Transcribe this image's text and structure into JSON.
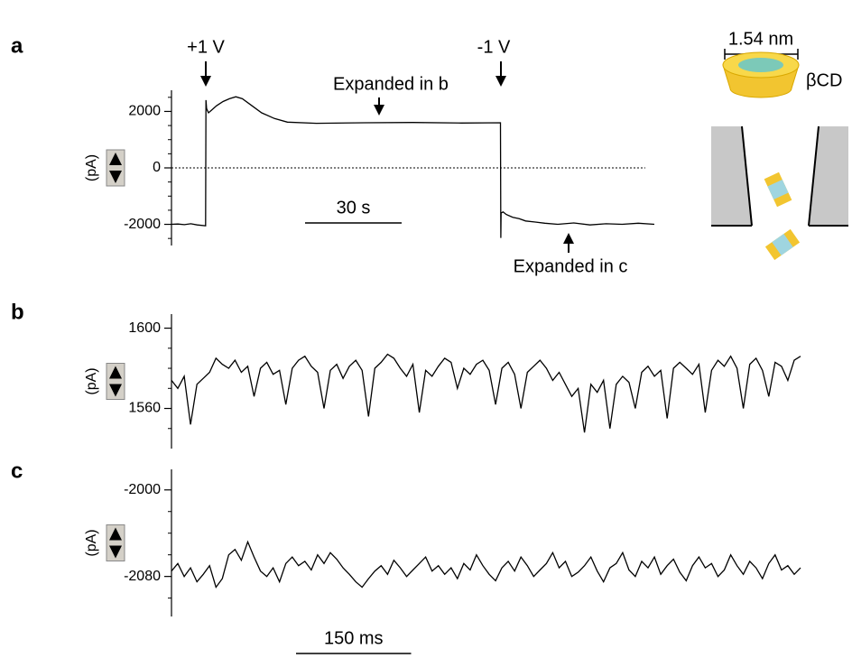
{
  "chart_data": [
    {
      "type": "line",
      "panel": "a",
      "y_label": "(pA)",
      "x": [
        0,
        2,
        4,
        6,
        8,
        10.6,
        10.7,
        10.9,
        11.5,
        12.5,
        14,
        16,
        18,
        20,
        22,
        25,
        28,
        32,
        36,
        45,
        60,
        75,
        90,
        102.2,
        102.3,
        102.4,
        103,
        104,
        106,
        108,
        110,
        113,
        116,
        120,
        125,
        130,
        135,
        140,
        145,
        150
      ],
      "values": [
        -2000,
        -1990,
        -2010,
        -1980,
        -2020,
        -2050,
        2400,
        2100,
        1950,
        2050,
        2200,
        2350,
        2450,
        2520,
        2450,
        2200,
        1950,
        1750,
        1620,
        1580,
        1600,
        1610,
        1590,
        1600,
        -2480,
        -1600,
        -1560,
        -1650,
        -1750,
        -1800,
        -1880,
        -1920,
        -1960,
        -2000,
        -1950,
        -2020,
        -1980,
        -2000,
        -1960,
        -2000
      ],
      "color": "#000000",
      "xlim": [
        0,
        150
      ],
      "ylim": [
        -2750,
        2750
      ],
      "yticks": [
        -2000,
        0,
        2000
      ],
      "yminorticks": [
        -2500,
        -1500,
        -1000,
        -500,
        500,
        1000,
        1500,
        2500
      ],
      "reference_line": 0,
      "scale_bar": {
        "label": "30 s",
        "value": 30
      },
      "annotations": [
        "+1 V",
        "-1 V",
        "Expanded in b",
        "Expanded in c"
      ]
    },
    {
      "type": "line",
      "panel": "b",
      "y_label": "(pA)",
      "values": [
        1574,
        1570,
        1576,
        1552,
        1572,
        1575,
        1578,
        1585,
        1582,
        1580,
        1584,
        1578,
        1581,
        1566,
        1580,
        1583,
        1577,
        1579,
        1562,
        1580,
        1584,
        1586,
        1581,
        1578,
        1560,
        1579,
        1582,
        1575,
        1581,
        1584,
        1579,
        1556,
        1580,
        1583,
        1587,
        1585,
        1580,
        1576,
        1582,
        1558,
        1579,
        1576,
        1581,
        1585,
        1583,
        1570,
        1580,
        1577,
        1582,
        1584,
        1579,
        1562,
        1580,
        1583,
        1577,
        1560,
        1578,
        1581,
        1584,
        1580,
        1574,
        1578,
        1572,
        1566,
        1570,
        1548,
        1572,
        1568,
        1574,
        1550,
        1572,
        1576,
        1573,
        1560,
        1578,
        1581,
        1576,
        1579,
        1555,
        1580,
        1583,
        1580,
        1577,
        1582,
        1558,
        1579,
        1584,
        1581,
        1586,
        1580,
        1560,
        1582,
        1585,
        1579,
        1566,
        1583,
        1581,
        1574,
        1584,
        1586
      ],
      "color": "#000000",
      "ylim": [
        1540,
        1607
      ],
      "yticks": [
        1560,
        1600
      ],
      "yminorticks": [
        1550,
        1570,
        1580,
        1590
      ]
    },
    {
      "type": "line",
      "panel": "c",
      "y_label": "(pA)",
      "values": [
        -2075,
        -2068,
        -2080,
        -2072,
        -2085,
        -2078,
        -2070,
        -2090,
        -2082,
        -2060,
        -2055,
        -2065,
        -2048,
        -2062,
        -2075,
        -2080,
        -2072,
        -2085,
        -2068,
        -2062,
        -2070,
        -2066,
        -2074,
        -2060,
        -2068,
        -2058,
        -2064,
        -2072,
        -2078,
        -2085,
        -2090,
        -2082,
        -2075,
        -2070,
        -2078,
        -2065,
        -2072,
        -2080,
        -2074,
        -2068,
        -2062,
        -2075,
        -2070,
        -2078,
        -2072,
        -2082,
        -2068,
        -2074,
        -2060,
        -2070,
        -2078,
        -2084,
        -2072,
        -2066,
        -2075,
        -2062,
        -2070,
        -2080,
        -2074,
        -2068,
        -2058,
        -2072,
        -2066,
        -2080,
        -2076,
        -2070,
        -2062,
        -2075,
        -2085,
        -2072,
        -2068,
        -2058,
        -2074,
        -2080,
        -2066,
        -2072,
        -2062,
        -2078,
        -2070,
        -2064,
        -2076,
        -2084,
        -2070,
        -2062,
        -2072,
        -2068,
        -2080,
        -2074,
        -2060,
        -2070,
        -2078,
        -2066,
        -2072,
        -2082,
        -2068,
        -2060,
        -2074,
        -2070,
        -2078,
        -2072
      ],
      "color": "#000000",
      "xlim": [
        0,
        820
      ],
      "ylim": [
        -2117,
        -1981
      ],
      "yticks": [
        -2080,
        -2000
      ],
      "yminorticks": [
        -2100,
        -2060,
        -2040,
        -2020
      ],
      "scale_bar": {
        "label": "150 ms",
        "value": 150
      }
    }
  ],
  "diagram": {
    "molecule": "βCD",
    "dimension": "1.54 nm"
  }
}
